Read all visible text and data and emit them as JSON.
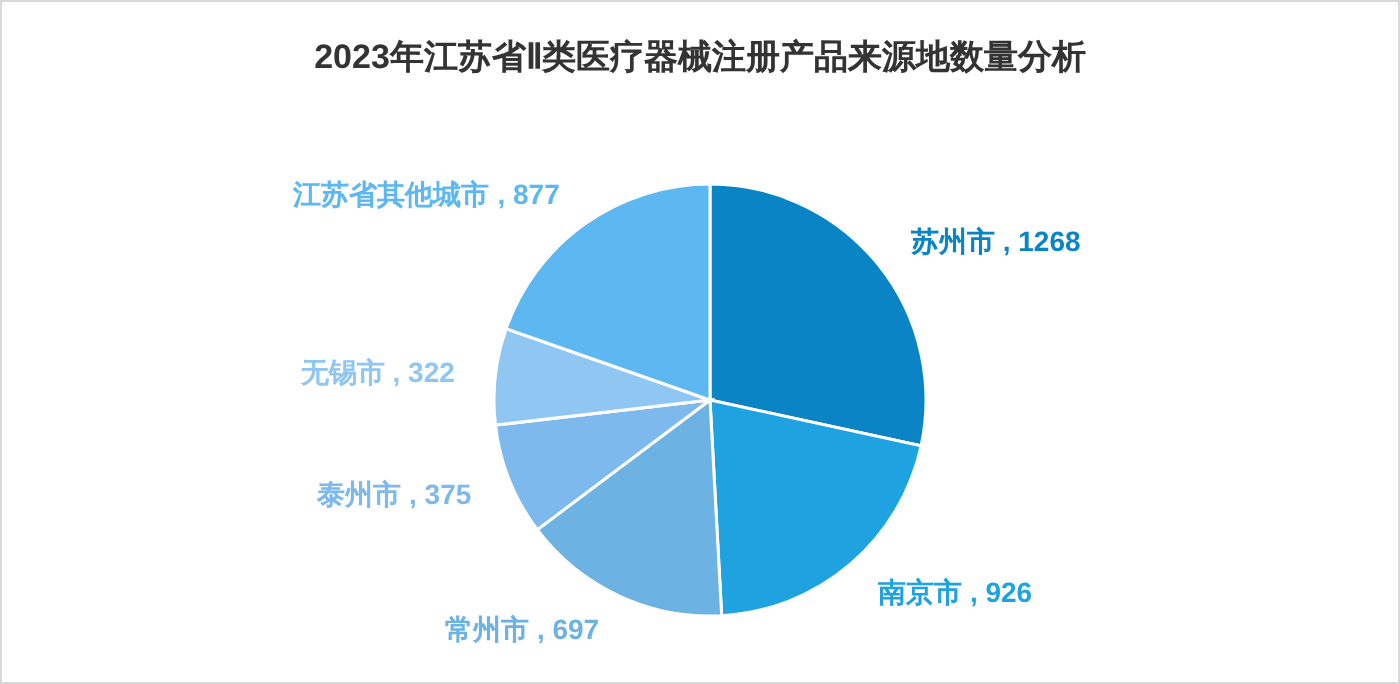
{
  "chart_data": {
    "type": "pie",
    "title": "2023年江苏省Ⅱ类医疗器械注册产品来源地数量分析",
    "categories": [
      "苏州市",
      "南京市",
      "常州市",
      "泰州市",
      "无锡市",
      "江苏省其他城市"
    ],
    "values": [
      1268,
      926,
      697,
      375,
      322,
      877
    ],
    "value_labels": [
      ", 1268",
      ", 926",
      ", 697",
      ", 375",
      ", 322",
      ", 877"
    ],
    "colors": [
      "#0a84c4",
      "#1ea3e0",
      "#6cb3e3",
      "#7db9ec",
      "#8fc6f2",
      "#5db7f0"
    ]
  }
}
